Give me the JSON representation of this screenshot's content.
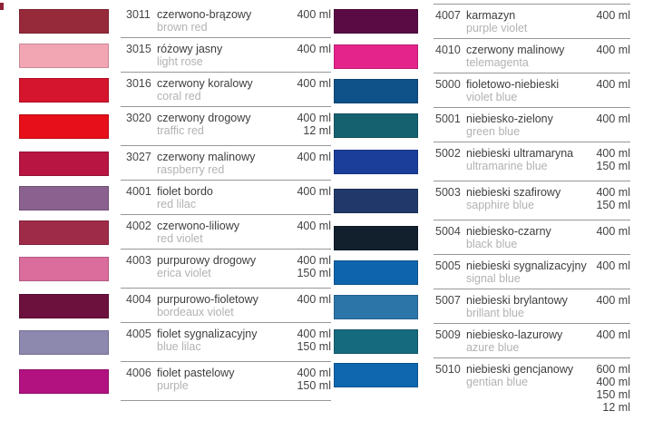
{
  "artifact": {
    "color": "#8e2235"
  },
  "columns": [
    {
      "id": "left",
      "entries": [
        {
          "code": "3011",
          "name_pl": "czerwono-brązowy",
          "name_en": "brown red",
          "volumes": [
            "400 ml"
          ],
          "color": "#962a3a"
        },
        {
          "code": "3015",
          "name_pl": "różowy jasny",
          "name_en": "light rose",
          "volumes": [
            "400 ml"
          ],
          "color": "#f2a6b4"
        },
        {
          "code": "3016",
          "name_pl": "czerwony koralowy",
          "name_en": "coral red",
          "volumes": [
            "400 ml"
          ],
          "color": "#d5142d"
        },
        {
          "code": "3020",
          "name_pl": "czerwony drogowy",
          "name_en": "traffic red",
          "volumes": [
            "400 ml",
            "12 ml"
          ],
          "color": "#e60f1a"
        },
        {
          "code": "3027",
          "name_pl": "czerwony malinowy",
          "name_en": "raspberry red",
          "volumes": [
            "400 ml"
          ],
          "color": "#b81543"
        },
        {
          "code": "4001",
          "name_pl": "fiolet bordo",
          "name_en": "red lilac",
          "volumes": [
            "400 ml"
          ],
          "color": "#8b6190"
        },
        {
          "code": "4002",
          "name_pl": "czerwono-liliowy",
          "name_en": "red violet",
          "volumes": [
            "400 ml"
          ],
          "color": "#9e2b48"
        },
        {
          "code": "4003",
          "name_pl": "purpurowy drogowy",
          "name_en": "erica violet",
          "volumes": [
            "400 ml",
            "150 ml"
          ],
          "color": "#db6d9d"
        },
        {
          "code": "4004",
          "name_pl": "purpurowo-fioletowy",
          "name_en": "bordeaux violet",
          "volumes": [
            "400 ml"
          ],
          "color": "#6c103d"
        },
        {
          "code": "4005",
          "name_pl": "fiolet sygnalizacyjny",
          "name_en": "blue lilac",
          "volumes": [
            "400 ml",
            "150 ml"
          ],
          "color": "#8d88ae"
        },
        {
          "code": "4006",
          "name_pl": "fiolet pastelowy",
          "name_en": "purple",
          "volumes": [
            "400 ml",
            "150 ml"
          ],
          "color": "#b11280"
        }
      ]
    },
    {
      "id": "right",
      "entries": [
        {
          "code": "4007",
          "name_pl": "karmazyn",
          "name_en": "purple violet",
          "volumes": [
            "400 ml"
          ],
          "color": "#5a0b44"
        },
        {
          "code": "4010",
          "name_pl": "czerwony malinowy",
          "name_en": "telemagenta",
          "volumes": [
            "400 ml"
          ],
          "color": "#e4248b"
        },
        {
          "code": "5000",
          "name_pl": "fioletowo-niebieski",
          "name_en": "violet blue",
          "volumes": [
            "400 ml"
          ],
          "color": "#0f5189"
        },
        {
          "code": "5001",
          "name_pl": "niebiesko-zielony",
          "name_en": "green blue",
          "volumes": [
            "400 ml"
          ],
          "color": "#156170"
        },
        {
          "code": "5002",
          "name_pl": "niebieski ultramaryna",
          "name_en": "ultramarine blue",
          "volumes": [
            "400 ml",
            "150 ml"
          ],
          "color": "#1b3e9a"
        },
        {
          "code": "5003",
          "name_pl": "niebieski szafirowy",
          "name_en": "sapphire blue",
          "volumes": [
            "400 ml",
            "150 ml"
          ],
          "color": "#20396a"
        },
        {
          "code": "5004",
          "name_pl": "niebiesko-czarny",
          "name_en": "black blue",
          "volumes": [
            "400 ml"
          ],
          "color": "#12202e"
        },
        {
          "code": "5005",
          "name_pl": "niebieski sygnalizacyjny",
          "name_en": "signal blue",
          "volumes": [
            "400 ml"
          ],
          "color": "#0f65ad"
        },
        {
          "code": "5007",
          "name_pl": "niebieski brylantowy",
          "name_en": "brillant blue",
          "volumes": [
            "400 ml"
          ],
          "color": "#2b75a9"
        },
        {
          "code": "5009",
          "name_pl": "niebiesko-lazurowy",
          "name_en": "azure blue",
          "volumes": [
            "400 ml"
          ],
          "color": "#166a7d"
        },
        {
          "code": "5010",
          "name_pl": "niebieski gencjanowy",
          "name_en": "gentian blue",
          "volumes": [
            "600 ml",
            "400 ml",
            "150 ml",
            "12 ml"
          ],
          "color": "#0e67af"
        }
      ]
    }
  ]
}
